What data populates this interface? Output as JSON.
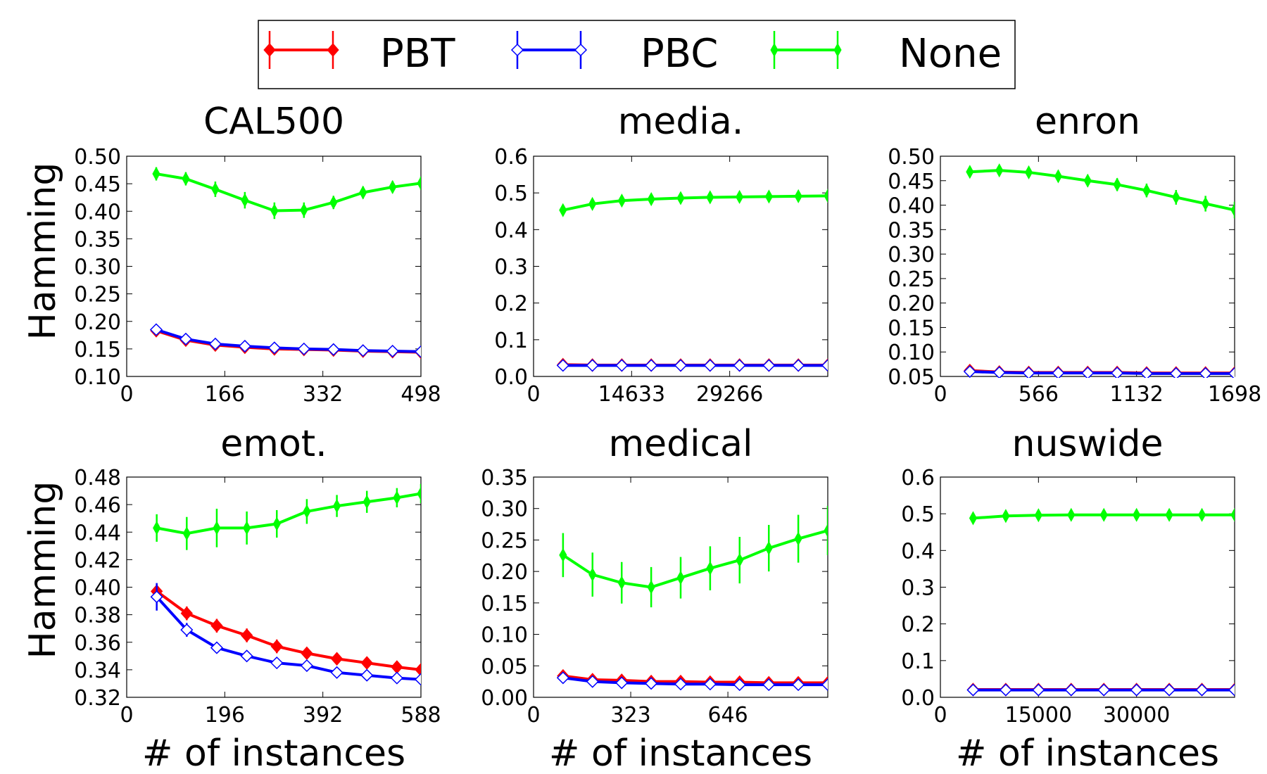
{
  "legend": [
    {
      "label": "PBT",
      "color": "#ff0000",
      "marker": "filled-diamond"
    },
    {
      "label": "PBC",
      "color": "#0000ff",
      "marker": "open-diamond"
    },
    {
      "label": "None",
      "color": "#00ff00",
      "marker": "thin-diamond"
    }
  ],
  "chart_data": [
    {
      "type": "line",
      "title": "CAL500",
      "xlabel": "",
      "ylabel": "Hamming",
      "xlim": [
        0,
        498
      ],
      "xticks": [
        0,
        166,
        332,
        498
      ],
      "xtick_labels": [
        "0",
        "166",
        "332",
        "498"
      ],
      "ylim": [
        0.1,
        0.5
      ],
      "yticks": [
        0.1,
        0.15,
        0.2,
        0.25,
        0.3,
        0.35,
        0.4,
        0.45,
        0.5
      ],
      "ytick_labels": [
        "0.10",
        "0.15",
        "0.20",
        "0.25",
        "0.30",
        "0.35",
        "0.40",
        "0.45",
        "0.50"
      ],
      "x": [
        50,
        100,
        150,
        200,
        250,
        300,
        350,
        400,
        450,
        498
      ],
      "series": [
        {
          "name": "PBT",
          "values": [
            0.183,
            0.166,
            0.157,
            0.153,
            0.15,
            0.149,
            0.148,
            0.146,
            0.145,
            0.144
          ],
          "err": [
            0.004,
            0.004,
            0.004,
            0.004,
            0.004,
            0.004,
            0.004,
            0.004,
            0.004,
            0.004
          ]
        },
        {
          "name": "PBC",
          "values": [
            0.185,
            0.168,
            0.159,
            0.155,
            0.152,
            0.15,
            0.149,
            0.147,
            0.146,
            0.145
          ],
          "err": [
            0.004,
            0.004,
            0.004,
            0.004,
            0.004,
            0.004,
            0.004,
            0.004,
            0.004,
            0.004
          ]
        },
        {
          "name": "None",
          "values": [
            0.468,
            0.459,
            0.44,
            0.42,
            0.401,
            0.402,
            0.416,
            0.434,
            0.444,
            0.451
          ],
          "err": [
            0.012,
            0.012,
            0.014,
            0.015,
            0.015,
            0.014,
            0.012,
            0.011,
            0.011,
            0.012
          ]
        }
      ]
    },
    {
      "type": "line",
      "title": "media.",
      "xlabel": "",
      "ylabel": "",
      "xlim": [
        0,
        43900
      ],
      "xticks": [
        0,
        14633,
        29266
      ],
      "xtick_labels": [
        "0",
        "14633",
        "29266"
      ],
      "ylim": [
        0.0,
        0.6
      ],
      "yticks": [
        0.0,
        0.1,
        0.2,
        0.3,
        0.4,
        0.5,
        0.6
      ],
      "ytick_labels": [
        "0.0",
        "0.1",
        "0.2",
        "0.3",
        "0.4",
        "0.5",
        "0.6"
      ],
      "x": [
        4390,
        8780,
        13170,
        17560,
        21950,
        26340,
        30730,
        35120,
        39510,
        43900
      ],
      "series": [
        {
          "name": "PBT",
          "values": [
            0.032,
            0.031,
            0.031,
            0.031,
            0.031,
            0.031,
            0.031,
            0.031,
            0.031,
            0.031
          ],
          "err": [
            0.003,
            0.002,
            0.002,
            0.002,
            0.002,
            0.002,
            0.002,
            0.002,
            0.002,
            0.002
          ]
        },
        {
          "name": "PBC",
          "values": [
            0.03,
            0.03,
            0.03,
            0.03,
            0.03,
            0.03,
            0.03,
            0.03,
            0.03,
            0.03
          ],
          "err": [
            0.002,
            0.002,
            0.002,
            0.002,
            0.002,
            0.002,
            0.002,
            0.002,
            0.002,
            0.002
          ]
        },
        {
          "name": "None",
          "values": [
            0.453,
            0.47,
            0.479,
            0.483,
            0.486,
            0.488,
            0.489,
            0.49,
            0.491,
            0.492
          ],
          "err": [
            0.012,
            0.011,
            0.01,
            0.01,
            0.009,
            0.009,
            0.009,
            0.009,
            0.009,
            0.009
          ]
        }
      ]
    },
    {
      "type": "line",
      "title": "enron",
      "xlabel": "",
      "ylabel": "",
      "xlim": [
        0,
        1698
      ],
      "xticks": [
        0,
        566,
        1132,
        1698
      ],
      "xtick_labels": [
        "0",
        "566",
        "1132",
        "1698"
      ],
      "ylim": [
        0.05,
        0.5
      ],
      "yticks": [
        0.05,
        0.1,
        0.15,
        0.2,
        0.25,
        0.3,
        0.35,
        0.4,
        0.45,
        0.5
      ],
      "ytick_labels": [
        "0.05",
        "0.10",
        "0.15",
        "0.20",
        "0.25",
        "0.30",
        "0.35",
        "0.40",
        "0.45",
        "0.50"
      ],
      "x": [
        170,
        340,
        510,
        680,
        850,
        1020,
        1190,
        1360,
        1530,
        1698
      ],
      "series": [
        {
          "name": "PBT",
          "values": [
            0.062,
            0.059,
            0.058,
            0.058,
            0.058,
            0.058,
            0.057,
            0.057,
            0.057,
            0.057
          ],
          "err": [
            0.003,
            0.003,
            0.003,
            0.003,
            0.003,
            0.003,
            0.003,
            0.003,
            0.003,
            0.003
          ]
        },
        {
          "name": "PBC",
          "values": [
            0.06,
            0.058,
            0.057,
            0.057,
            0.057,
            0.057,
            0.056,
            0.056,
            0.056,
            0.056
          ],
          "err": [
            0.003,
            0.003,
            0.003,
            0.003,
            0.003,
            0.003,
            0.003,
            0.003,
            0.003,
            0.003
          ]
        },
        {
          "name": "None",
          "values": [
            0.468,
            0.471,
            0.467,
            0.459,
            0.45,
            0.442,
            0.43,
            0.416,
            0.403,
            0.39
          ],
          "err": [
            0.01,
            0.01,
            0.01,
            0.011,
            0.012,
            0.013,
            0.014,
            0.015,
            0.016,
            0.017
          ]
        }
      ]
    },
    {
      "type": "line",
      "title": "emot.",
      "xlabel": "# of instances",
      "ylabel": "Hamming",
      "xlim": [
        0,
        588
      ],
      "xticks": [
        0,
        196,
        392,
        588
      ],
      "xtick_labels": [
        "0",
        "196",
        "392",
        "588"
      ],
      "ylim": [
        0.32,
        0.48
      ],
      "yticks": [
        0.32,
        0.34,
        0.36,
        0.38,
        0.4,
        0.42,
        0.44,
        0.46,
        0.48
      ],
      "ytick_labels": [
        "0.32",
        "0.34",
        "0.36",
        "0.38",
        "0.40",
        "0.42",
        "0.44",
        "0.46",
        "0.48"
      ],
      "x": [
        60,
        120,
        180,
        240,
        300,
        360,
        420,
        480,
        540,
        588
      ],
      "series": [
        {
          "name": "PBT",
          "values": [
            0.397,
            0.381,
            0.372,
            0.365,
            0.357,
            0.352,
            0.348,
            0.345,
            0.342,
            0.34
          ],
          "err": [
            0.005,
            0.005,
            0.005,
            0.005,
            0.005,
            0.004,
            0.004,
            0.004,
            0.003,
            0.003
          ]
        },
        {
          "name": "PBC",
          "values": [
            0.393,
            0.369,
            0.356,
            0.35,
            0.345,
            0.343,
            0.338,
            0.336,
            0.334,
            0.333
          ],
          "err": [
            0.01,
            0.005,
            0.003,
            0.003,
            0.003,
            0.003,
            0.003,
            0.003,
            0.003,
            0.003
          ]
        },
        {
          "name": "None",
          "values": [
            0.443,
            0.439,
            0.443,
            0.443,
            0.446,
            0.455,
            0.459,
            0.462,
            0.465,
            0.468
          ],
          "err": [
            0.01,
            0.012,
            0.014,
            0.012,
            0.01,
            0.009,
            0.008,
            0.008,
            0.007,
            0.007
          ]
        }
      ]
    },
    {
      "type": "line",
      "title": "medical",
      "xlabel": "# of instances",
      "ylabel": "",
      "xlim": [
        0,
        978
      ],
      "xticks": [
        0,
        323,
        646
      ],
      "xtick_labels": [
        "0",
        "323",
        "646"
      ],
      "ylim": [
        0.0,
        0.35
      ],
      "yticks": [
        0.0,
        0.05,
        0.1,
        0.15,
        0.2,
        0.25,
        0.3,
        0.35
      ],
      "ytick_labels": [
        "0.00",
        "0.05",
        "0.10",
        "0.15",
        "0.20",
        "0.25",
        "0.30",
        "0.35"
      ],
      "x": [
        98,
        196,
        293,
        391,
        489,
        587,
        685,
        782,
        880,
        978
      ],
      "series": [
        {
          "name": "PBT",
          "values": [
            0.034,
            0.028,
            0.027,
            0.025,
            0.025,
            0.024,
            0.024,
            0.023,
            0.023,
            0.023
          ],
          "err": [
            0.003,
            0.003,
            0.003,
            0.003,
            0.003,
            0.003,
            0.003,
            0.003,
            0.003,
            0.003
          ]
        },
        {
          "name": "PBC",
          "values": [
            0.031,
            0.025,
            0.023,
            0.022,
            0.021,
            0.021,
            0.02,
            0.02,
            0.02,
            0.02
          ],
          "err": [
            0.003,
            0.003,
            0.003,
            0.003,
            0.003,
            0.003,
            0.003,
            0.003,
            0.003,
            0.003
          ]
        },
        {
          "name": "None",
          "values": [
            0.226,
            0.195,
            0.182,
            0.175,
            0.19,
            0.205,
            0.218,
            0.237,
            0.252,
            0.265
          ],
          "err": [
            0.035,
            0.035,
            0.033,
            0.032,
            0.033,
            0.035,
            0.037,
            0.037,
            0.038,
            0.039
          ]
        }
      ]
    },
    {
      "type": "line",
      "title": "nuswide",
      "xlabel": "# of instances",
      "ylabel": "",
      "xlim": [
        0,
        45000
      ],
      "xticks": [
        0,
        15000,
        30000
      ],
      "xtick_labels": [
        "0",
        "15000",
        "30000"
      ],
      "ylim": [
        0.0,
        0.6
      ],
      "yticks": [
        0.0,
        0.1,
        0.2,
        0.3,
        0.4,
        0.5,
        0.6
      ],
      "ytick_labels": [
        "0.0",
        "0.1",
        "0.2",
        "0.3",
        "0.4",
        "0.5",
        "0.6"
      ],
      "x": [
        5000,
        10000,
        15000,
        20000,
        25000,
        30000,
        35000,
        40000,
        45000
      ],
      "series": [
        {
          "name": "PBT",
          "values": [
            0.021,
            0.021,
            0.021,
            0.021,
            0.021,
            0.021,
            0.021,
            0.021,
            0.021
          ],
          "err": [
            0.002,
            0.002,
            0.002,
            0.002,
            0.002,
            0.002,
            0.002,
            0.002,
            0.002
          ]
        },
        {
          "name": "PBC",
          "values": [
            0.02,
            0.02,
            0.02,
            0.02,
            0.02,
            0.02,
            0.02,
            0.02,
            0.02
          ],
          "err": [
            0.002,
            0.002,
            0.002,
            0.002,
            0.002,
            0.002,
            0.002,
            0.002,
            0.002
          ]
        },
        {
          "name": "None",
          "values": [
            0.488,
            0.494,
            0.496,
            0.497,
            0.497,
            0.497,
            0.497,
            0.497,
            0.497
          ],
          "err": [
            0.01,
            0.008,
            0.007,
            0.007,
            0.007,
            0.007,
            0.007,
            0.007,
            0.007
          ]
        }
      ]
    }
  ]
}
